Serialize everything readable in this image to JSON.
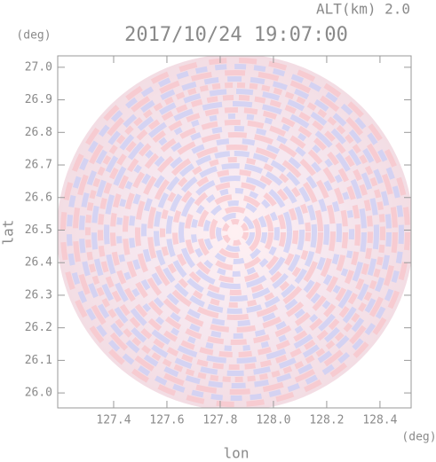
{
  "chart_data": {
    "type": "heatmap",
    "title": "2017/10/24 19:07:00",
    "subtitle": "ALT(km) 2.0",
    "x_label": "lon",
    "y_label": "lat",
    "x_unit": "(deg)",
    "y_unit": "(deg)",
    "xlim": [
      127.19,
      128.517
    ],
    "ylim": [
      25.954,
      27.035
    ],
    "xticks": [
      127.4,
      127.6,
      127.8,
      {
        "value": 128.0,
        "label": "128.0"
      },
      128.2,
      128.4
    ],
    "yticks": [
      {
        "value": 26.0,
        "label": "26.0"
      },
      26.1,
      26.2,
      26.3,
      26.4,
      26.5,
      26.6,
      26.7,
      26.8,
      26.9,
      {
        "value": 27.0,
        "label": "27.0"
      }
    ]
  }
}
